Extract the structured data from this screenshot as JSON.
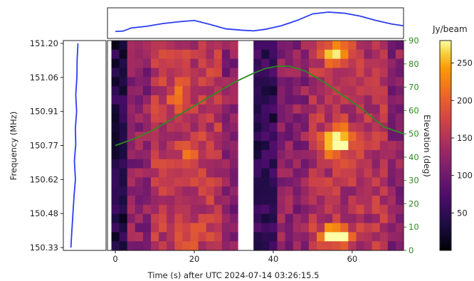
{
  "chart_data": {
    "type": "heatmap",
    "xlabel": "Time (s) after UTC 2024-07-14 03:26:15.5",
    "ylabel": "Frequency (MHz)",
    "y2label": "Elevation (deg)",
    "colorbar_label": "Jy/beam",
    "xlim": [
      -2,
      73
    ],
    "xticks": [
      0,
      20,
      40,
      60
    ],
    "yticks": [
      "151.20",
      "151.06",
      "150.91",
      "150.77",
      "150.62",
      "150.48",
      "150.33"
    ],
    "ylim_freq": [
      150.33,
      151.2
    ],
    "y2lim": [
      0,
      90
    ],
    "y2ticks": [
      0,
      10,
      20,
      30,
      40,
      50,
      60,
      70,
      80,
      90
    ],
    "colorbar_range": [
      0,
      280
    ],
    "colorbar_ticks": [
      50,
      100,
      150,
      200,
      250
    ],
    "colormap": "inferno",
    "gap_seconds": [
      31,
      35
    ],
    "heatmap_extent_seconds": [
      -1,
      73
    ],
    "n_time_bins": 37,
    "n_freq_bins": 23,
    "elevation_series": {
      "name": "Elevation",
      "color": "#2e8b20",
      "t": [
        0,
        5,
        10,
        15,
        20,
        25,
        30,
        35,
        38,
        41,
        44,
        48,
        53,
        58,
        63,
        68,
        73
      ],
      "values": [
        45,
        48,
        52,
        57,
        62,
        67,
        72,
        76,
        78,
        79,
        79,
        77,
        72,
        66,
        60,
        53,
        50
      ]
    },
    "time_profile": {
      "color": "#2a3df0",
      "t": [
        0,
        2,
        4,
        8,
        12,
        16,
        20,
        24,
        28,
        32,
        35,
        38,
        42,
        46,
        50,
        54,
        58,
        62,
        66,
        70,
        73
      ],
      "values": [
        0.12,
        0.14,
        0.28,
        0.36,
        0.48,
        0.56,
        0.62,
        0.44,
        0.24,
        0.18,
        0.15,
        0.22,
        0.38,
        0.62,
        0.92,
        1.0,
        0.95,
        0.82,
        0.62,
        0.46,
        0.38
      ]
    },
    "freq_profile": {
      "color": "#2a3df0",
      "freq": [
        151.2,
        151.13,
        151.06,
        150.98,
        150.91,
        150.84,
        150.77,
        150.7,
        150.62,
        150.55,
        150.48,
        150.4,
        150.33
      ],
      "values": [
        0.88,
        0.78,
        0.76,
        0.62,
        0.72,
        0.58,
        0.62,
        0.46,
        0.58,
        0.42,
        0.3,
        0.16,
        0.05
      ]
    }
  }
}
